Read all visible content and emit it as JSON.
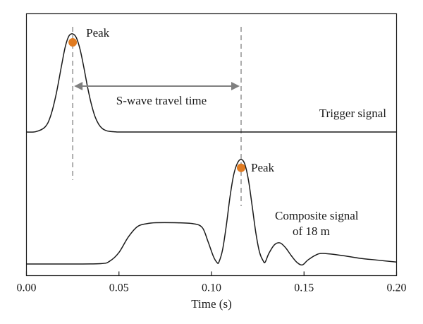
{
  "chart_data": {
    "type": "line",
    "xlabel": "Time (s)",
    "xlim": [
      0.0,
      0.2
    ],
    "xticks": [
      "0.00",
      "0.05",
      "0.10",
      "0.15",
      "0.20"
    ],
    "ylabel": "",
    "grid": false,
    "series": [
      {
        "name": "Trigger signal",
        "color": "#1a1a1a",
        "x": [
          0.0,
          0.005,
          0.01,
          0.013,
          0.016,
          0.019,
          0.021,
          0.023,
          0.025,
          0.027,
          0.029,
          0.031,
          0.033,
          0.035,
          0.037,
          0.039,
          0.041,
          0.043,
          0.045,
          0.048,
          0.05,
          0.06,
          0.08,
          0.1,
          0.12,
          0.14,
          0.16,
          0.18,
          0.2
        ],
        "y": [
          0.0,
          0.003,
          0.05,
          0.16,
          0.38,
          0.68,
          0.87,
          0.98,
          1.0,
          0.96,
          0.84,
          0.66,
          0.46,
          0.29,
          0.16,
          0.08,
          0.035,
          0.015,
          0.006,
          0.002,
          0.0,
          0.0,
          0.0,
          0.0,
          0.0,
          0.0,
          0.0,
          0.0,
          0.0
        ]
      },
      {
        "name": "Composite signal of 18 m",
        "color": "#1a1a1a",
        "x": [
          0.0,
          0.02,
          0.04,
          0.045,
          0.05,
          0.055,
          0.06,
          0.065,
          0.07,
          0.08,
          0.09,
          0.095,
          0.098,
          0.101,
          0.103,
          0.104,
          0.106,
          0.108,
          0.11,
          0.112,
          0.114,
          0.116,
          0.118,
          0.12,
          0.122,
          0.124,
          0.126,
          0.128,
          0.129,
          0.131,
          0.134,
          0.137,
          0.14,
          0.143,
          0.146,
          0.149,
          0.152,
          0.156,
          0.16,
          0.17,
          0.18,
          0.19,
          0.2
        ],
        "y": [
          0.0,
          0.0,
          0.004,
          0.03,
          0.12,
          0.28,
          0.39,
          0.42,
          0.43,
          0.43,
          0.42,
          0.38,
          0.24,
          0.08,
          0.015,
          0.02,
          0.15,
          0.4,
          0.7,
          0.93,
          1.05,
          1.09,
          1.04,
          0.87,
          0.6,
          0.32,
          0.12,
          0.03,
          0.02,
          0.11,
          0.2,
          0.22,
          0.17,
          0.09,
          0.02,
          -0.01,
          0.04,
          0.09,
          0.11,
          0.09,
          0.06,
          0.04,
          0.02
        ]
      }
    ],
    "markers": [
      {
        "label": "Peak",
        "x": 0.025,
        "series": 0,
        "color": "#e07b21"
      },
      {
        "label": "Peak",
        "x": 0.116,
        "series": 1,
        "color": "#e07b21"
      }
    ],
    "annotations": {
      "travel_time": "S-wave travel time",
      "trigger_label": "Trigger signal",
      "composite_label_line1": "Composite signal",
      "composite_label_line2": "of 18 m"
    }
  }
}
